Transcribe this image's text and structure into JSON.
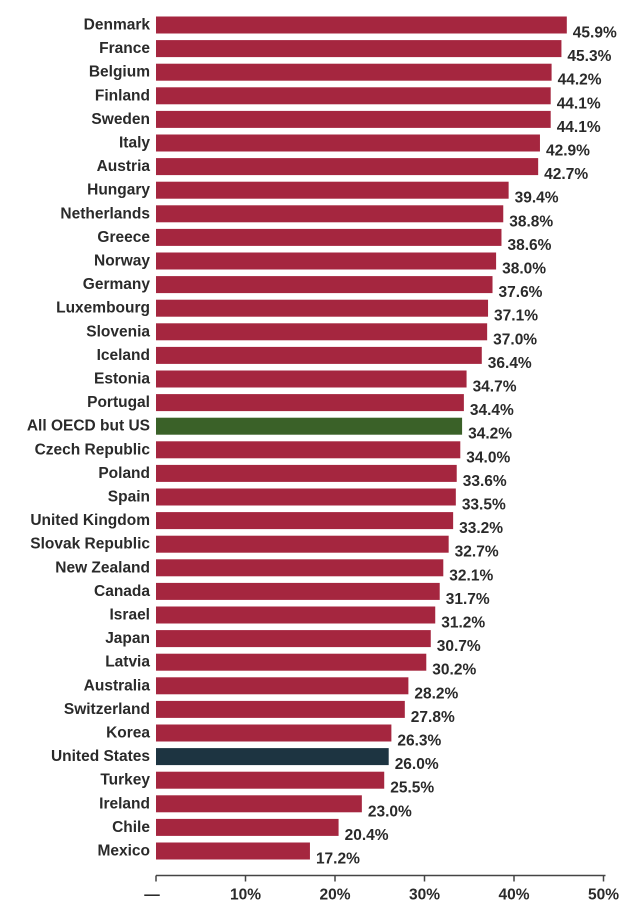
{
  "chart_data": {
    "type": "bar",
    "orientation": "horizontal",
    "categories": [
      "Denmark",
      "France",
      "Belgium",
      "Finland",
      "Sweden",
      "Italy",
      "Austria",
      "Hungary",
      "Netherlands",
      "Greece",
      "Norway",
      "Germany",
      "Luxembourg",
      "Slovenia",
      "Iceland",
      "Estonia",
      "Portugal",
      "All OECD but US",
      "Czech Republic",
      "Poland",
      "Spain",
      "United Kingdom",
      "Slovak Republic",
      "New Zealand",
      "Canada",
      "Israel",
      "Japan",
      "Latvia",
      "Australia",
      "Switzerland",
      "Korea",
      "United States",
      "Turkey",
      "Ireland",
      "Chile",
      "Mexico"
    ],
    "values": [
      45.9,
      45.3,
      44.2,
      44.1,
      44.1,
      42.9,
      42.7,
      39.4,
      38.8,
      38.6,
      38.0,
      37.6,
      37.1,
      37.0,
      36.4,
      34.7,
      34.4,
      34.2,
      34.0,
      33.6,
      33.5,
      33.2,
      32.7,
      32.1,
      31.7,
      31.2,
      30.7,
      30.2,
      28.2,
      27.8,
      26.3,
      26.0,
      25.5,
      23.0,
      20.4,
      17.2
    ],
    "value_labels": [
      "45.9%",
      "45.3%",
      "44.2%",
      "44.1%",
      "44.1%",
      "42.9%",
      "42.7%",
      "39.4%",
      "38.8%",
      "38.6%",
      "38.0%",
      "37.6%",
      "37.1%",
      "37.0%",
      "36.4%",
      "34.7%",
      "34.4%",
      "34.2%",
      "34.0%",
      "33.6%",
      "33.5%",
      "33.2%",
      "32.7%",
      "32.1%",
      "31.7%",
      "31.2%",
      "30.7%",
      "30.2%",
      "28.2%",
      "27.8%",
      "26.3%",
      "26.0%",
      "25.5%",
      "23.0%",
      "20.4%",
      "17.2%"
    ],
    "bar_colors": {
      "default": "#a5263f",
      "All OECD but US": "#3a6128",
      "United States": "#1d3441"
    },
    "xaxis": {
      "ticks": [
        0,
        10,
        20,
        30,
        40,
        50
      ],
      "tick_labels": [
        "—",
        "10%",
        "20%",
        "30%",
        "40%",
        "50%"
      ],
      "xlim": [
        0,
        50
      ]
    },
    "title": "",
    "xlabel": "",
    "ylabel": "",
    "grid": false,
    "legend": "none"
  }
}
